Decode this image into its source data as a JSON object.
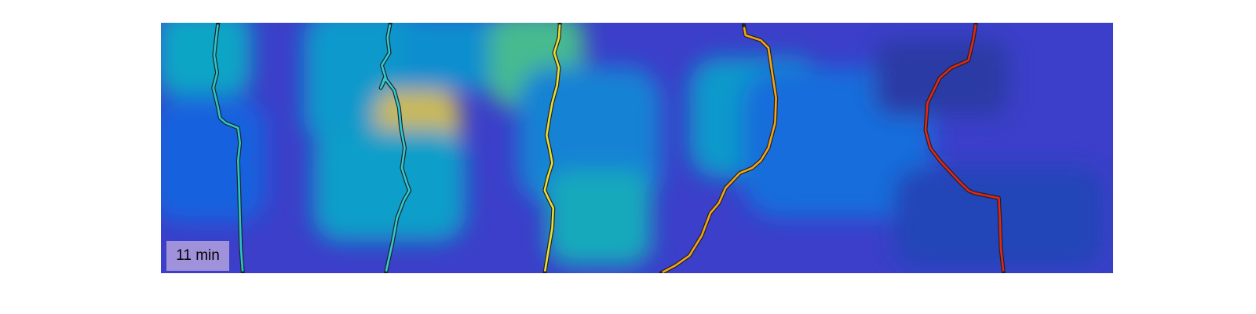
{
  "time_label": "11 min",
  "colors": {
    "colormap": "parula",
    "background": "#3b3fc9",
    "trace_outline": "#222222"
  },
  "chart_data": {
    "type": "heatmap",
    "title": "",
    "xlabel": "",
    "ylabel": "",
    "xlim": [
      0,
      1
    ],
    "ylim": [
      0,
      1
    ],
    "grid": false,
    "legend": "none",
    "colormap": "parula",
    "intensity_blobs": [
      {
        "x": 0.045,
        "y": 0.88,
        "w": 0.1,
        "h": 0.34,
        "v": 0.45
      },
      {
        "x": 0.05,
        "y": 0.45,
        "w": 0.12,
        "h": 0.5,
        "v": 0.18
      },
      {
        "x": 0.215,
        "y": 0.78,
        "w": 0.13,
        "h": 0.55,
        "v": 0.4
      },
      {
        "x": 0.27,
        "y": 0.55,
        "w": 0.09,
        "h": 0.36,
        "v": 0.82
      },
      {
        "x": 0.24,
        "y": 0.35,
        "w": 0.16,
        "h": 0.45,
        "v": 0.42
      },
      {
        "x": 0.31,
        "y": 0.88,
        "w": 0.12,
        "h": 0.3,
        "v": 0.35
      },
      {
        "x": 0.395,
        "y": 0.85,
        "w": 0.1,
        "h": 0.38,
        "v": 0.62
      },
      {
        "x": 0.45,
        "y": 0.55,
        "w": 0.15,
        "h": 0.55,
        "v": 0.3
      },
      {
        "x": 0.46,
        "y": 0.22,
        "w": 0.11,
        "h": 0.38,
        "v": 0.48
      },
      {
        "x": 0.625,
        "y": 0.62,
        "w": 0.14,
        "h": 0.48,
        "v": 0.4
      },
      {
        "x": 0.66,
        "y": 0.62,
        "w": 0.09,
        "h": 0.34,
        "v": 0.78
      },
      {
        "x": 0.71,
        "y": 0.52,
        "w": 0.2,
        "h": 0.6,
        "v": 0.22
      },
      {
        "x": 0.82,
        "y": 0.78,
        "w": 0.14,
        "h": 0.3,
        "v": 0.05
      },
      {
        "x": 0.88,
        "y": 0.22,
        "w": 0.22,
        "h": 0.4,
        "v": 0.08
      }
    ],
    "series": [
      {
        "color": "#26c6d0",
        "x": [
          0.06,
          0.058,
          0.056,
          0.059,
          0.055,
          0.06,
          0.062,
          0.068,
          0.081,
          0.083,
          0.081,
          0.082,
          0.083,
          0.084,
          0.086
        ],
        "y": [
          1.0,
          0.94,
          0.87,
          0.8,
          0.74,
          0.66,
          0.62,
          0.6,
          0.58,
          0.52,
          0.45,
          0.35,
          0.22,
          0.1,
          0.0
        ]
      },
      {
        "color": "#2ecbd4",
        "x": [
          0.241,
          0.238,
          0.24,
          0.232,
          0.236,
          0.231,
          0.235,
          0.245,
          0.25,
          0.252,
          0.256,
          0.253,
          0.258,
          0.261,
          0.255,
          0.248,
          0.243,
          0.236
        ],
        "y": [
          1.0,
          0.94,
          0.88,
          0.83,
          0.78,
          0.74,
          0.78,
          0.73,
          0.66,
          0.58,
          0.5,
          0.42,
          0.36,
          0.33,
          0.29,
          0.22,
          0.12,
          0.0
        ]
      },
      {
        "color": "#e8e035",
        "x": [
          0.419,
          0.418,
          0.413,
          0.418,
          0.416,
          0.411,
          0.408,
          0.405,
          0.408,
          0.411,
          0.406,
          0.403,
          0.408,
          0.412,
          0.411,
          0.406,
          0.403
        ],
        "y": [
          1.0,
          0.94,
          0.88,
          0.82,
          0.75,
          0.68,
          0.62,
          0.55,
          0.5,
          0.44,
          0.38,
          0.33,
          0.29,
          0.26,
          0.18,
          0.07,
          0.0
        ]
      },
      {
        "color": "#f5a418",
        "x": [
          0.612,
          0.614,
          0.63,
          0.638,
          0.642,
          0.646,
          0.645,
          0.638,
          0.63,
          0.621,
          0.608,
          0.593,
          0.586,
          0.577,
          0.568,
          0.555,
          0.54,
          0.525
        ],
        "y": [
          0.99,
          0.95,
          0.93,
          0.9,
          0.8,
          0.7,
          0.6,
          0.5,
          0.45,
          0.42,
          0.4,
          0.34,
          0.28,
          0.24,
          0.15,
          0.07,
          0.03,
          0.0
        ]
      },
      {
        "color": "#e1261c",
        "x": [
          0.856,
          0.853,
          0.848,
          0.83,
          0.818,
          0.805,
          0.803,
          0.808,
          0.818,
          0.83,
          0.84,
          0.848,
          0.854,
          0.88,
          0.881,
          0.882,
          0.885
        ],
        "y": [
          1.0,
          0.93,
          0.85,
          0.82,
          0.78,
          0.68,
          0.57,
          0.5,
          0.45,
          0.4,
          0.36,
          0.33,
          0.32,
          0.3,
          0.22,
          0.1,
          0.0
        ]
      }
    ]
  }
}
